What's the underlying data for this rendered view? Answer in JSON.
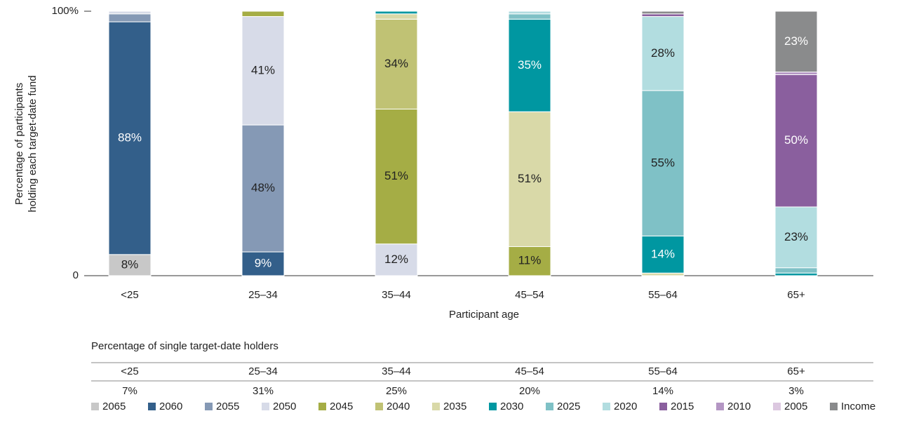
{
  "chart_data": {
    "type": "stacked_bar",
    "categories": [
      "<25",
      "25–34",
      "35–44",
      "45–54",
      "55–64",
      "65+"
    ],
    "x_label": "Participant age",
    "y_label": [
      "Percentage of participants",
      "holding each target-date fund"
    ],
    "ylim": [
      0,
      100
    ],
    "yticks": [
      0,
      {
        "value": 100,
        "label": "100%"
      }
    ],
    "legend": "bottom",
    "series": [
      {
        "name": "2065",
        "color": "#c8c8c8",
        "values": [
          8,
          0,
          0,
          0,
          0,
          0
        ],
        "value_labels": [
          "8%",
          null,
          null,
          null,
          null,
          null
        ]
      },
      {
        "name": "2060",
        "color": "#335f8a",
        "values": [
          88,
          9,
          0,
          0,
          0,
          0
        ],
        "value_labels": [
          "88%",
          "9%",
          null,
          null,
          null,
          null
        ]
      },
      {
        "name": "2055",
        "color": "#8599b5",
        "values": [
          3,
          48,
          0,
          0,
          0,
          0
        ],
        "value_labels": [
          null,
          "48%",
          null,
          null,
          null,
          null
        ]
      },
      {
        "name": "2050",
        "color": "#d7dbe8",
        "values": [
          1,
          41,
          12,
          0,
          0,
          0
        ],
        "value_labels": [
          null,
          "41%",
          "12%",
          null,
          null,
          null
        ]
      },
      {
        "name": "2045",
        "color": "#a5ad45",
        "values": [
          0,
          2,
          51,
          11,
          0,
          0
        ],
        "value_labels": [
          null,
          null,
          "51%",
          "11%",
          null,
          null
        ]
      },
      {
        "name": "2040",
        "color": "#c0c274",
        "values": [
          0,
          0,
          34,
          0,
          0,
          0
        ],
        "value_labels": [
          null,
          null,
          "34%",
          null,
          null,
          null
        ]
      },
      {
        "name": "2035",
        "color": "#d9d9a8",
        "values": [
          0,
          0,
          2,
          51,
          1,
          0
        ],
        "value_labels": [
          null,
          null,
          null,
          "51%",
          null,
          null
        ]
      },
      {
        "name": "2030",
        "color": "#0097a1",
        "values": [
          0,
          0,
          1,
          35,
          14,
          1
        ],
        "value_labels": [
          null,
          null,
          null,
          "35%",
          "14%",
          null
        ]
      },
      {
        "name": "2025",
        "color": "#7fc1c6",
        "values": [
          0,
          0,
          0,
          2,
          55,
          2
        ],
        "value_labels": [
          null,
          null,
          null,
          null,
          "55%",
          null
        ]
      },
      {
        "name": "2020",
        "color": "#b2dde0",
        "values": [
          0,
          0,
          0,
          1,
          28,
          23
        ],
        "value_labels": [
          null,
          null,
          null,
          null,
          "28%",
          "23%"
        ]
      },
      {
        "name": "2015",
        "color": "#8a5f9e",
        "values": [
          0,
          0,
          0,
          0,
          1,
          50
        ],
        "value_labels": [
          null,
          null,
          null,
          null,
          null,
          "50%"
        ]
      },
      {
        "name": "2010",
        "color": "#b496c4",
        "values": [
          0,
          0,
          0,
          0,
          0,
          1
        ],
        "value_labels": [
          null,
          null,
          null,
          null,
          null,
          null
        ]
      },
      {
        "name": "2005",
        "color": "#dcc8e0",
        "values": [
          0,
          0,
          0,
          0,
          0,
          0
        ],
        "value_labels": [
          null,
          null,
          null,
          null,
          null,
          null
        ]
      },
      {
        "name": "Income",
        "color": "#8a8b8c",
        "values": [
          0,
          0,
          0,
          0,
          1,
          23
        ],
        "value_labels": [
          null,
          null,
          null,
          null,
          null,
          "23%"
        ]
      }
    ]
  },
  "table": {
    "title": "Percentage of single target-date holders",
    "columns": [
      "<25",
      "25–34",
      "35–44",
      "45–54",
      "55–64",
      "65+"
    ],
    "values": [
      "7%",
      "31%",
      "25%",
      "20%",
      "14%",
      "3%"
    ]
  }
}
